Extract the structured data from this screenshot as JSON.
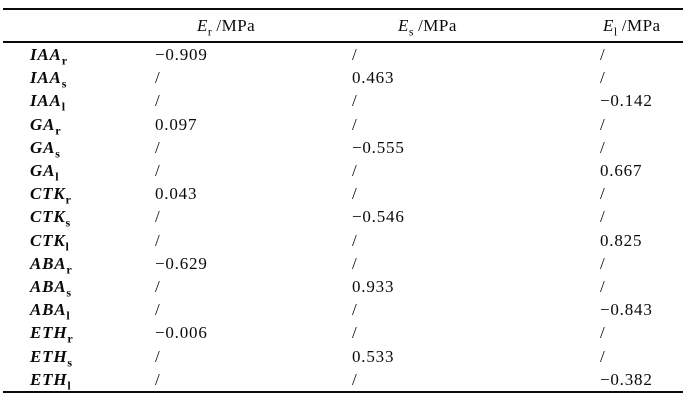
{
  "colors": {
    "background": "#ffffff",
    "text": "#0a0a0a",
    "rule": "#0a0a0a"
  },
  "table": {
    "header": {
      "columns": [
        {
          "symbol": "E",
          "subscript": "r",
          "unit": "/MPa"
        },
        {
          "symbol": "E",
          "subscript": "s",
          "unit": "/MPa"
        },
        {
          "symbol": "E",
          "subscript": "l",
          "unit": "/MPa"
        }
      ]
    },
    "rows": [
      {
        "label": "IAA",
        "subscript": "r",
        "values": [
          "−0.909",
          "/",
          "/"
        ]
      },
      {
        "label": "IAA",
        "subscript": "s",
        "values": [
          "/",
          "0.463",
          "/"
        ]
      },
      {
        "label": "IAA",
        "subscript": "l",
        "values": [
          "/",
          "/",
          "−0.142"
        ]
      },
      {
        "label": "GA",
        "subscript": "r",
        "values": [
          "0.097",
          "/",
          "/"
        ]
      },
      {
        "label": "GA",
        "subscript": "s",
        "values": [
          "/",
          "−0.555",
          "/"
        ]
      },
      {
        "label": "GA",
        "subscript": "l",
        "values": [
          "/",
          "/",
          "0.667"
        ]
      },
      {
        "label": "CTK",
        "subscript": "r",
        "values": [
          "0.043",
          "/",
          "/"
        ]
      },
      {
        "label": "CTK",
        "subscript": "s",
        "values": [
          "/",
          "−0.546",
          "/"
        ]
      },
      {
        "label": "CTK",
        "subscript": "l",
        "values": [
          "/",
          "/",
          "0.825"
        ]
      },
      {
        "label": "ABA",
        "subscript": "r",
        "values": [
          "−0.629",
          "/",
          "/"
        ]
      },
      {
        "label": "ABA",
        "subscript": "s",
        "values": [
          "/",
          "0.933",
          "/"
        ]
      },
      {
        "label": "ABA",
        "subscript": "l",
        "values": [
          "/",
          "/",
          "−0.843"
        ]
      },
      {
        "label": "ETH",
        "subscript": "r",
        "values": [
          "−0.006",
          "/",
          "/"
        ]
      },
      {
        "label": "ETH",
        "subscript": "s",
        "values": [
          "/",
          "0.533",
          "/"
        ]
      },
      {
        "label": "ETH",
        "subscript": "l",
        "values": [
          "/",
          "/",
          "−0.382"
        ]
      }
    ]
  }
}
